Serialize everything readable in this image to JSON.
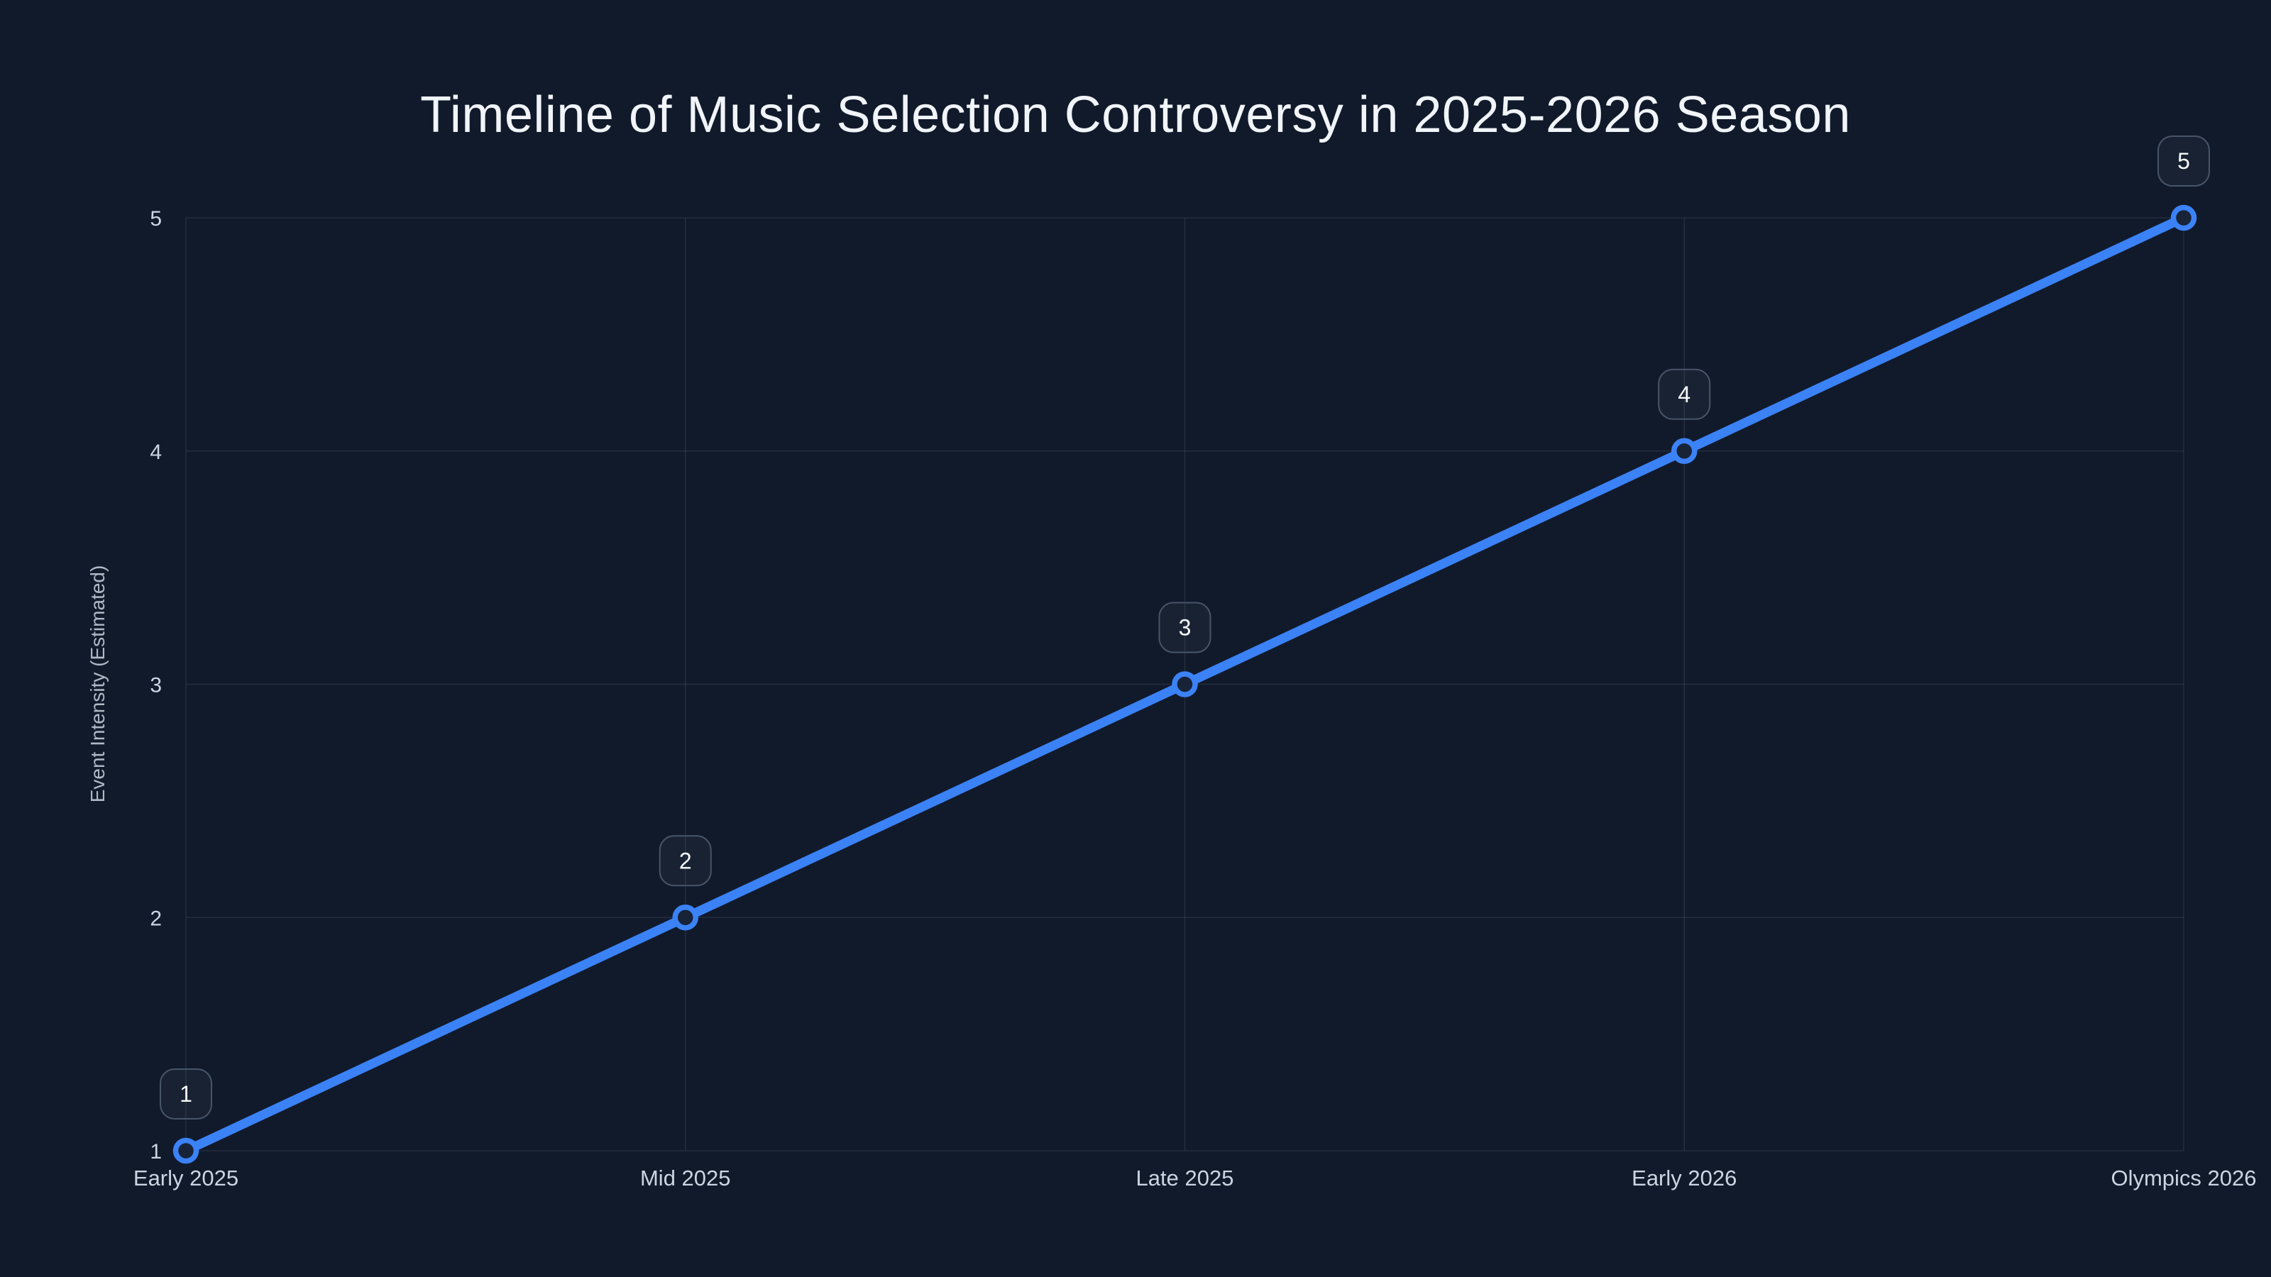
{
  "page": {
    "background_color": "#111a2b"
  },
  "chart_data": {
    "type": "line",
    "title": "Timeline of Music Selection Controversy in 2025-2026 Season",
    "xlabel": "",
    "ylabel": "Event Intensity (Estimated)",
    "categories": [
      "Early 2025",
      "Mid 2025",
      "Late 2025",
      "Early 2026",
      "Olympics 2026"
    ],
    "series": [
      {
        "name": "Event Intensity",
        "values": [
          1,
          2,
          3,
          4,
          5
        ]
      }
    ],
    "point_labels": [
      "1",
      "2",
      "3",
      "4",
      "5"
    ],
    "yticks": [
      "1",
      "2",
      "3",
      "4",
      "5"
    ],
    "ytick_values": [
      1,
      2,
      3,
      4,
      5
    ],
    "ylim": [
      1,
      5
    ],
    "grid": true,
    "legend": false,
    "colors": {
      "line": "#3b82f6",
      "marker_fill": "#182338",
      "badge_border": "#475569",
      "badge_fill": "rgba(148,163,184,0.06)",
      "badge_text": "#f8fafc",
      "grid": "rgba(148,163,184,0.14)",
      "axis_text": "#cbd5e1",
      "title_text": "#f1f5f9",
      "background": "#111a2b"
    }
  }
}
